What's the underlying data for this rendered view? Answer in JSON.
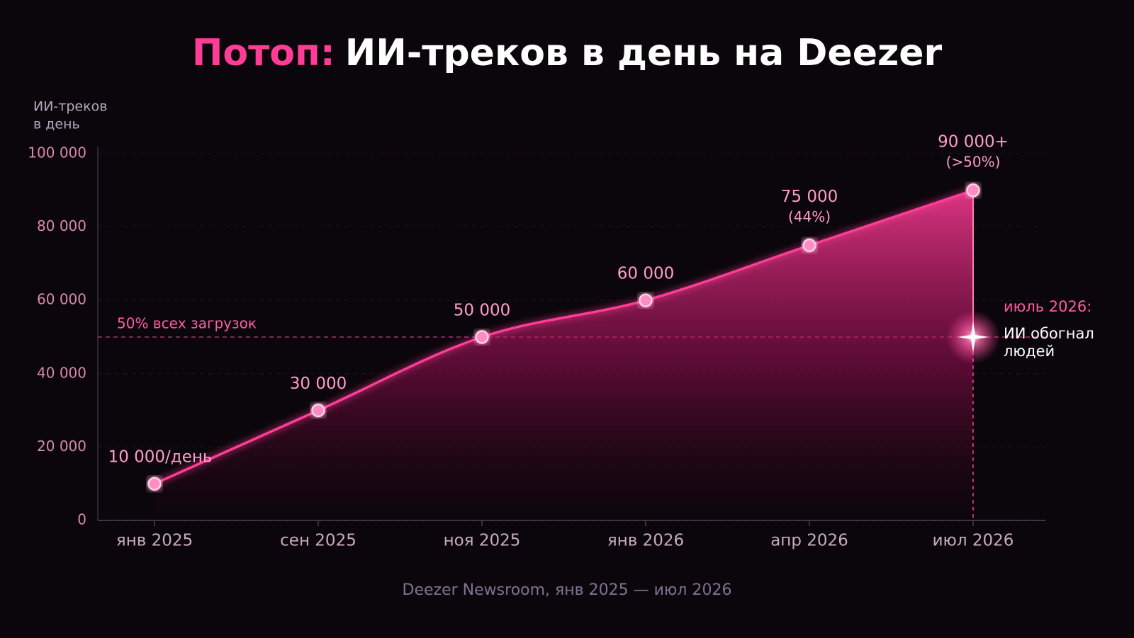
{
  "chart_data": {
    "type": "line",
    "title": {
      "highlight": "Потоп:",
      "text": "ИИ-треков в день на Deezer"
    },
    "y_label": [
      "ИИ-треков",
      "в день"
    ],
    "categories": [
      "янв 2025",
      "сен 2025",
      "ноя 2025",
      "янв 2026",
      "апр 2026",
      "июл 2026"
    ],
    "values": [
      10000,
      30000,
      50000,
      60000,
      75000,
      90000
    ],
    "value_labels": [
      "10 000/день",
      "30 000",
      "50 000",
      "60 000",
      "75 000",
      "90 000+"
    ],
    "value_sublabels": [
      null,
      null,
      null,
      null,
      "(44%)",
      "(>50%)"
    ],
    "color": "#ff3d96",
    "ylim": [
      0,
      100000
    ],
    "yticks": [
      0,
      {
        "value": 20000,
        "label": "20 000"
      },
      {
        "value": 40000,
        "label": "40 000"
      },
      {
        "value": 60000,
        "label": "60 000"
      },
      {
        "value": 80000,
        "label": "80 000"
      },
      {
        "value": 100000,
        "label": "100 000"
      }
    ],
    "grid": true,
    "reference_line": {
      "value": 50000,
      "label": "50% всех загрузок"
    },
    "annotation": {
      "title": "июль 2026:",
      "text": [
        "ИИ обогнал",
        "людей"
      ]
    },
    "source": "Deezer Newsroom, янв 2025 — июл 2026"
  }
}
